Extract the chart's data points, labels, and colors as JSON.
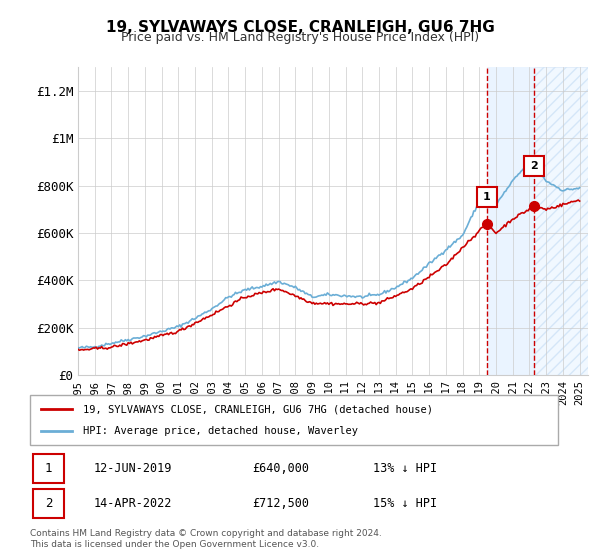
{
  "title": "19, SYLVAWAYS CLOSE, CRANLEIGH, GU6 7HG",
  "subtitle": "Price paid vs. HM Land Registry's House Price Index (HPI)",
  "legend_line1": "19, SYLVAWAYS CLOSE, CRANLEIGH, GU6 7HG (detached house)",
  "legend_line2": "HPI: Average price, detached house, Waverley",
  "sale1_date": "12-JUN-2019",
  "sale1_price": 640000,
  "sale1_label": "13% ↓ HPI",
  "sale2_date": "14-APR-2022",
  "sale2_price": 712500,
  "sale2_label": "15% ↓ HPI",
  "footnote": "Contains HM Land Registry data © Crown copyright and database right 2024.\nThis data is licensed under the Open Government Licence v3.0.",
  "hpi_color": "#6baed6",
  "price_color": "#cc0000",
  "sale_marker_color": "#cc0000",
  "vline_color": "#cc0000",
  "shade_color": "#ddeeff",
  "hatch_color": "#aaccee",
  "ylim": [
    0,
    1300000
  ],
  "yticks": [
    0,
    200000,
    400000,
    600000,
    800000,
    1000000,
    1200000
  ],
  "ytick_labels": [
    "£0",
    "£200K",
    "£400K",
    "£600K",
    "£800K",
    "£1M",
    "£1.2M"
  ]
}
